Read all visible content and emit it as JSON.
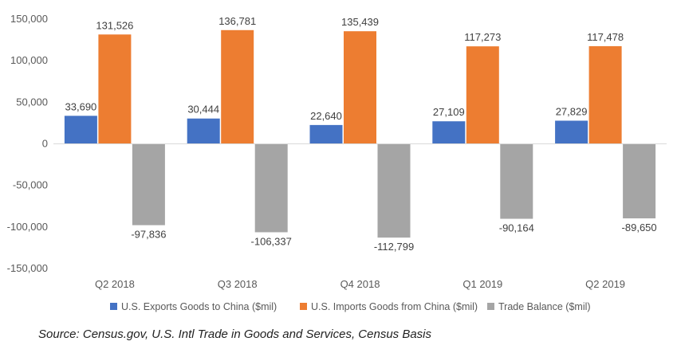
{
  "chart_data": {
    "type": "bar",
    "categories": [
      "Q2 2018",
      "Q3 2018",
      "Q4 2018",
      "Q1 2019",
      "Q2 2019"
    ],
    "series": [
      {
        "name": "U.S. Exports Goods to China ($mil)",
        "values": [
          33690,
          30444,
          22640,
          27109,
          27829
        ],
        "labels": [
          "33,690",
          "30,444",
          "22,640",
          "27,109",
          "27,829"
        ],
        "color": "#4472c4"
      },
      {
        "name": "U.S. Imports Goods from China ($mil)",
        "values": [
          131526,
          136781,
          135439,
          117273,
          117478
        ],
        "labels": [
          "131,526",
          "136,781",
          "135,439",
          "117,273",
          "117,478"
        ],
        "color": "#ed7d31"
      },
      {
        "name": "Trade Balance ($mil)",
        "values": [
          -97836,
          -106337,
          -112799,
          -90164,
          -89650
        ],
        "labels": [
          "-97,836",
          "-106,337",
          "-112,799",
          "-90,164",
          "-89,650"
        ],
        "color": "#a5a5a5"
      }
    ],
    "ylim": [
      -150000,
      150000
    ],
    "yticks": [
      150000,
      100000,
      50000,
      0,
      -50000,
      -100000,
      -150000
    ],
    "ytick_labels": [
      "150,000",
      "100,000",
      "50,000",
      "0",
      "-50,000",
      "-100,000",
      "-150,000"
    ],
    "grid": false,
    "legend_position": "bottom"
  },
  "source": "Source: Census.gov, U.S. Intl Trade in Goods and Services, Census Basis"
}
